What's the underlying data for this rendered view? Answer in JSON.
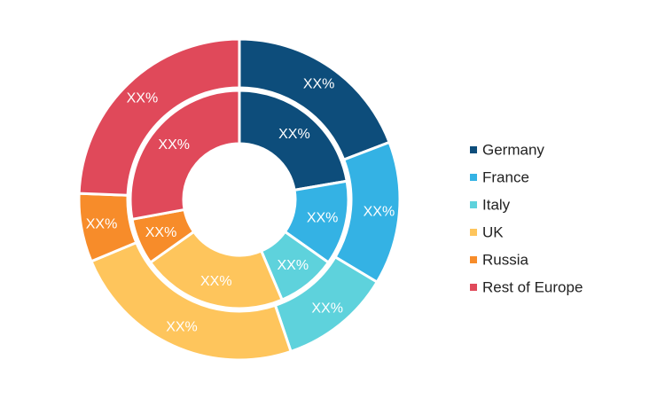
{
  "chart_data": {
    "type": "pie",
    "variant": "double-donut",
    "categories": [
      "Germany",
      "France",
      "Italy",
      "UK",
      "Russia",
      "Rest of Europe"
    ],
    "colors": [
      "#0d4d7b",
      "#34b2e4",
      "#5ed2dc",
      "#fec55c",
      "#f78c2a",
      "#e0495a"
    ],
    "series": [
      {
        "ring": "inner",
        "values": [
          22.3,
          12.5,
          8.8,
          21.6,
          6.9,
          27.9
        ],
        "labels": [
          "XX%",
          "XX%",
          "XX%",
          "XX%",
          "XX%",
          "XX%"
        ]
      },
      {
        "ring": "outer",
        "values": [
          19.2,
          14.4,
          11.2,
          23.9,
          6.9,
          24.4
        ],
        "labels": [
          "XX%",
          "XX%",
          "XX%",
          "XX%",
          "XX%",
          "XX%"
        ]
      }
    ],
    "legend": "right"
  }
}
